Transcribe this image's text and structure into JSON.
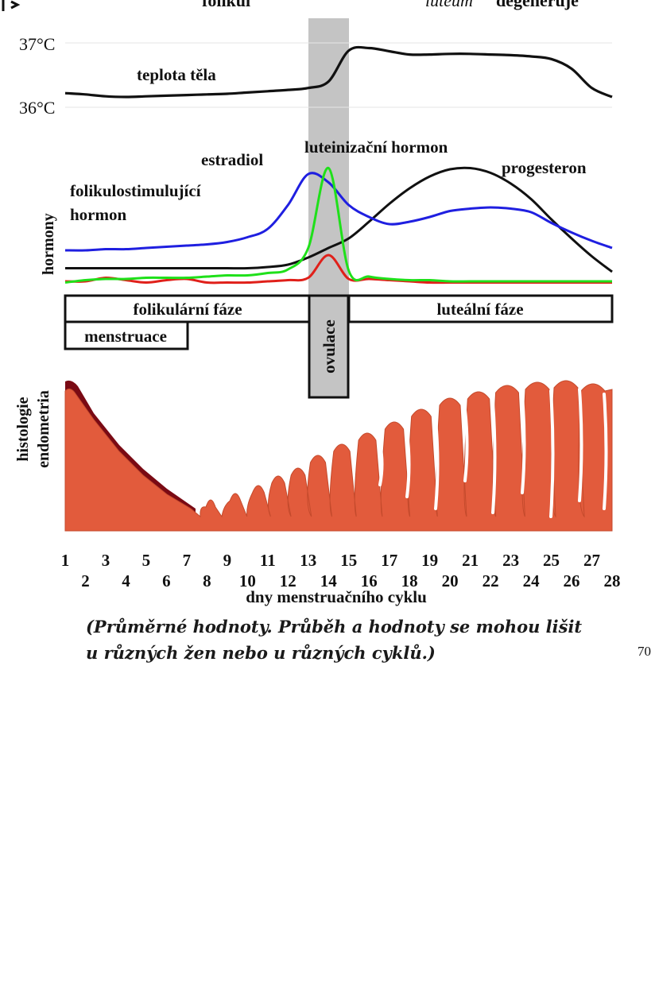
{
  "top_labels": {
    "left_cropped": "folikul",
    "right_cropped_italic": "luteum",
    "right_cropped": "degeneruje"
  },
  "temperature": {
    "tick_37": "37°C",
    "tick_36": "36°C",
    "label": "teplota těla"
  },
  "hormones": {
    "axis_label": "hormony",
    "fsh_label_line1": "folikulostimulující",
    "fsh_label_line2": "hormon",
    "estradiol_label": "estradiol",
    "lh_label": "luteinizační hormon",
    "progesteron_label": "progesteron"
  },
  "phases": {
    "follicular": "folikulární fáze",
    "menstruation": "menstruace",
    "ovulation": "ovulace",
    "luteal": "luteální fáze"
  },
  "endometrium": {
    "axis_label_line1": "histologie",
    "axis_label_line2": "endometria"
  },
  "x_axis": {
    "odd_days": [
      "1",
      "3",
      "5",
      "7",
      "9",
      "11",
      "13",
      "15",
      "17",
      "19",
      "21",
      "23",
      "25",
      "27"
    ],
    "even_days": [
      "2",
      "4",
      "6",
      "8",
      "10",
      "12",
      "14",
      "16",
      "18",
      "20",
      "22",
      "24",
      "26",
      "28"
    ],
    "title": "dny menstruačního cyklu"
  },
  "note": {
    "line1": "(Průměrné hodnoty. Průběh a hodnoty se mohou lišit",
    "line2": "u různých žen nebo u různých cyklů.)"
  },
  "page_number": "70",
  "colors": {
    "fsh": "#1f1fe0",
    "estradiol": "#e0201a",
    "lh": "#1fe01a",
    "progesteron": "#111111",
    "temperature": "#111111",
    "ovulation_band": "#c4c4c4",
    "endometrium": "#e25b3c",
    "endometrium_shed": "#7a0a14"
  },
  "chart_data": {
    "type": "line",
    "x": [
      1,
      2,
      3,
      4,
      5,
      6,
      7,
      8,
      9,
      10,
      11,
      12,
      13,
      14,
      15,
      16,
      17,
      18,
      19,
      20,
      21,
      22,
      23,
      24,
      25,
      26,
      27,
      28
    ],
    "xlabel": "dny menstruačního cyklu",
    "series": [
      {
        "name": "teplota těla",
        "unit": "°C",
        "values": [
          36.22,
          36.2,
          36.17,
          36.16,
          36.17,
          36.18,
          36.19,
          36.2,
          36.21,
          36.23,
          36.25,
          36.27,
          36.3,
          36.4,
          36.88,
          36.92,
          36.87,
          36.82,
          36.82,
          36.83,
          36.83,
          36.82,
          36.81,
          36.79,
          36.75,
          36.6,
          36.3,
          36.16
        ],
        "ylim": [
          36,
          37
        ]
      },
      {
        "name": "folikulostimulující hormon",
        "values": [
          0.28,
          0.28,
          0.29,
          0.29,
          0.3,
          0.31,
          0.32,
          0.33,
          0.35,
          0.39,
          0.46,
          0.66,
          0.92,
          0.85,
          0.66,
          0.56,
          0.5,
          0.52,
          0.56,
          0.61,
          0.63,
          0.64,
          0.63,
          0.6,
          0.51,
          0.43,
          0.36,
          0.3
        ]
      },
      {
        "name": "estradiol",
        "values": [
          0.02,
          0.02,
          0.05,
          0.03,
          0.01,
          0.03,
          0.04,
          0.01,
          0.01,
          0.01,
          0.02,
          0.03,
          0.05,
          0.24,
          0.04,
          0.04,
          0.03,
          0.02,
          0.01,
          0.01,
          0.01,
          0.01,
          0.01,
          0.01,
          0.01,
          0.01,
          0.01,
          0.01
        ]
      },
      {
        "name": "luteinizační hormon",
        "values": [
          0.01,
          0.03,
          0.04,
          0.04,
          0.05,
          0.05,
          0.05,
          0.06,
          0.07,
          0.07,
          0.09,
          0.12,
          0.3,
          0.97,
          0.11,
          0.06,
          0.04,
          0.03,
          0.03,
          0.02,
          0.02,
          0.02,
          0.02,
          0.02,
          0.02,
          0.02,
          0.02,
          0.02
        ]
      },
      {
        "name": "progesteron",
        "values": [
          0.13,
          0.13,
          0.13,
          0.13,
          0.13,
          0.13,
          0.13,
          0.13,
          0.13,
          0.13,
          0.14,
          0.16,
          0.22,
          0.3,
          0.38,
          0.52,
          0.67,
          0.8,
          0.9,
          0.96,
          0.97,
          0.93,
          0.84,
          0.71,
          0.54,
          0.38,
          0.23,
          0.1
        ]
      }
    ]
  }
}
